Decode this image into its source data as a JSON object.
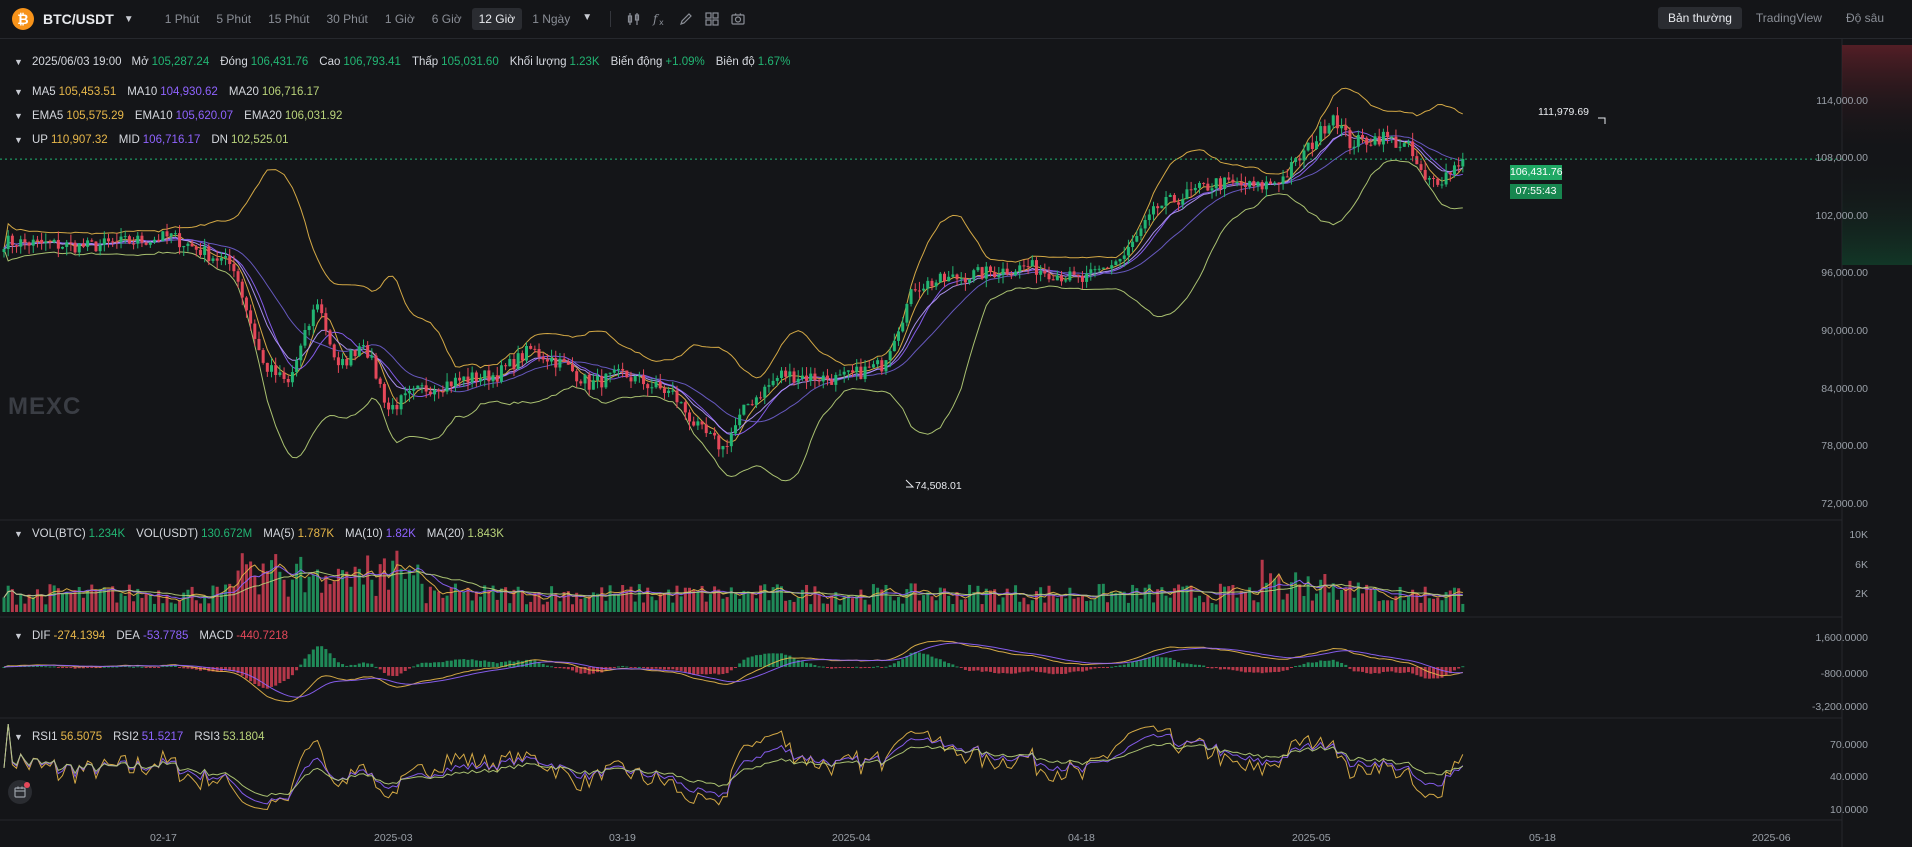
{
  "header": {
    "symbol": "BTC/USDT",
    "coin_glyph": "₿",
    "intervals": [
      "1 Phút",
      "5 Phút",
      "15 Phút",
      "30 Phút",
      "1 Giờ",
      "6 Giờ",
      "12 Giờ",
      "1 Ngày"
    ],
    "active_interval": "12 Giờ",
    "views": [
      "Bản thường",
      "TradingView",
      "Độ sâu"
    ],
    "active_view": "Bản thường",
    "tool_icons": [
      "candle-type-icon",
      "indicator-icon",
      "draw-icon",
      "layout-icon",
      "screenshot-icon"
    ]
  },
  "ohlc": {
    "date": "2025/06/03 19:00",
    "open_label": "Mở",
    "open": "105,287.24",
    "close_label": "Đóng",
    "close": "106,431.76",
    "high_label": "Cao",
    "high": "106,793.41",
    "low_label": "Thấp",
    "low": "105,031.60",
    "volume_label": "Khối lượng",
    "volume": "1.23K",
    "change_label": "Biến động",
    "change": "+1.09%",
    "amplitude_label": "Biên độ",
    "amplitude": "1.67%"
  },
  "ma": {
    "ma5": "105,453.51",
    "ma10": "104,930.62",
    "ma20": "106,716.17"
  },
  "ema": {
    "ema5": "105,575.29",
    "ema10": "105,620.07",
    "ema20": "106,031.92"
  },
  "boll": {
    "up": "110,907.32",
    "mid": "106,716.17",
    "dn": "102,525.01"
  },
  "vol": {
    "btc": "1.234K",
    "usdt": "130.672M",
    "ma5": "1.787K",
    "ma10": "1.82K",
    "ma20": "1.843K"
  },
  "macd": {
    "dif": "-274.1394",
    "dea": "-53.7785",
    "macd": "-440.7218"
  },
  "rsi": {
    "rsi1": "56.5075",
    "rsi2": "51.5217",
    "rsi3": "53.1804"
  },
  "annotations": {
    "high": "111,979.69",
    "low": "74,508.01"
  },
  "current": {
    "price": "106,431.76",
    "countdown": "07:55:43"
  },
  "watermark": "MEXC",
  "axes": {
    "price_ticks": [
      "114,000.00",
      "108,000.00",
      "102,000.00",
      "96,000.00",
      "90,000.00",
      "84,000.00",
      "78,000.00",
      "72,000.00"
    ],
    "vol_ticks": [
      "10K",
      "6K",
      "2K"
    ],
    "macd_ticks": [
      "1,600.0000",
      "-800.0000",
      "-3,200.0000"
    ],
    "rsi_ticks": [
      "70.0000",
      "40.0000",
      "10.0000"
    ],
    "time_labels": [
      "02-17",
      "2025-03",
      "03-19",
      "2025-04",
      "04-18",
      "2025-05",
      "05-18",
      "2025-06"
    ]
  },
  "colors": {
    "up": "#22b573",
    "down": "#e5485a",
    "ma5": "#e8b84a",
    "ma10": "#8f63ff",
    "ma20": "#b9d37a"
  },
  "chart_data": {
    "type": "candlestick",
    "interval": "12 Giờ",
    "price_range": [
      70000,
      118000
    ],
    "anchors": [
      [
        0,
        98000
      ],
      [
        20,
        97500
      ],
      [
        40,
        98500
      ],
      [
        55,
        95500
      ],
      [
        62,
        85500
      ],
      [
        68,
        83500
      ],
      [
        75,
        92000
      ],
      [
        80,
        85000
      ],
      [
        86,
        88000
      ],
      [
        92,
        81000
      ],
      [
        100,
        83000
      ],
      [
        110,
        84000
      ],
      [
        118,
        84500
      ],
      [
        126,
        87000
      ],
      [
        134,
        85500
      ],
      [
        140,
        83500
      ],
      [
        148,
        84500
      ],
      [
        160,
        82500
      ],
      [
        166,
        79000
      ],
      [
        172,
        77000
      ],
      [
        178,
        81500
      ],
      [
        186,
        84500
      ],
      [
        200,
        84000
      ],
      [
        210,
        85500
      ],
      [
        218,
        93500
      ],
      [
        230,
        94500
      ],
      [
        245,
        95500
      ],
      [
        258,
        94000
      ],
      [
        268,
        96500
      ],
      [
        276,
        101500
      ],
      [
        290,
        104000
      ],
      [
        300,
        103500
      ],
      [
        306,
        104500
      ],
      [
        314,
        108500
      ],
      [
        318,
        111000
      ],
      [
        322,
        108000
      ],
      [
        330,
        108700
      ],
      [
        336,
        107500
      ],
      [
        340,
        104000
      ],
      [
        344,
        104500
      ],
      [
        349,
        106400
      ]
    ]
  }
}
